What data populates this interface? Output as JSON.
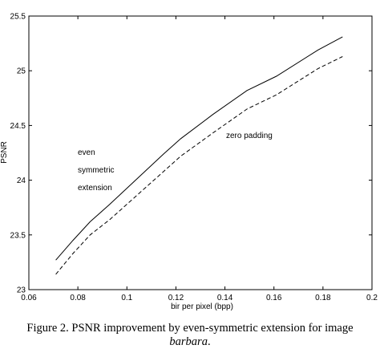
{
  "chart_data": {
    "type": "line",
    "title": "",
    "xlabel": "bir per pixel (bpp)",
    "ylabel": "PSNR",
    "xlim": [
      0.06,
      0.2
    ],
    "ylim": [
      23,
      25.5
    ],
    "xticks": [
      "0.06",
      "0.08",
      "0.1",
      "0.12",
      "0.14",
      "0.16",
      "0.18",
      "0.2"
    ],
    "yticks": [
      "23",
      "23.5",
      "24",
      "24.5",
      "25",
      "25.5"
    ],
    "grid": false,
    "series": [
      {
        "name": "even symmetric extension",
        "style": "solid",
        "x": [
          0.071,
          0.078,
          0.085,
          0.093,
          0.104,
          0.115,
          0.122,
          0.135,
          0.149,
          0.161,
          0.178,
          0.188
        ],
        "y": [
          23.27,
          23.45,
          23.62,
          23.78,
          24.01,
          24.24,
          24.38,
          24.6,
          24.82,
          24.95,
          25.19,
          25.31
        ]
      },
      {
        "name": "zero padding",
        "style": "dashed",
        "x": [
          0.071,
          0.078,
          0.085,
          0.093,
          0.104,
          0.115,
          0.122,
          0.135,
          0.149,
          0.161,
          0.178,
          0.188
        ],
        "y": [
          23.14,
          23.33,
          23.5,
          23.64,
          23.86,
          24.08,
          24.22,
          24.43,
          24.65,
          24.78,
          25.02,
          25.13
        ]
      }
    ],
    "annotations": [
      "even",
      "symmetric",
      "extension",
      "zero padding"
    ]
  },
  "caption": {
    "line1": "Figure 2. PSNR improvement by even-symmetric extension for image",
    "line2": "barbara",
    "line2_suffix": "."
  }
}
